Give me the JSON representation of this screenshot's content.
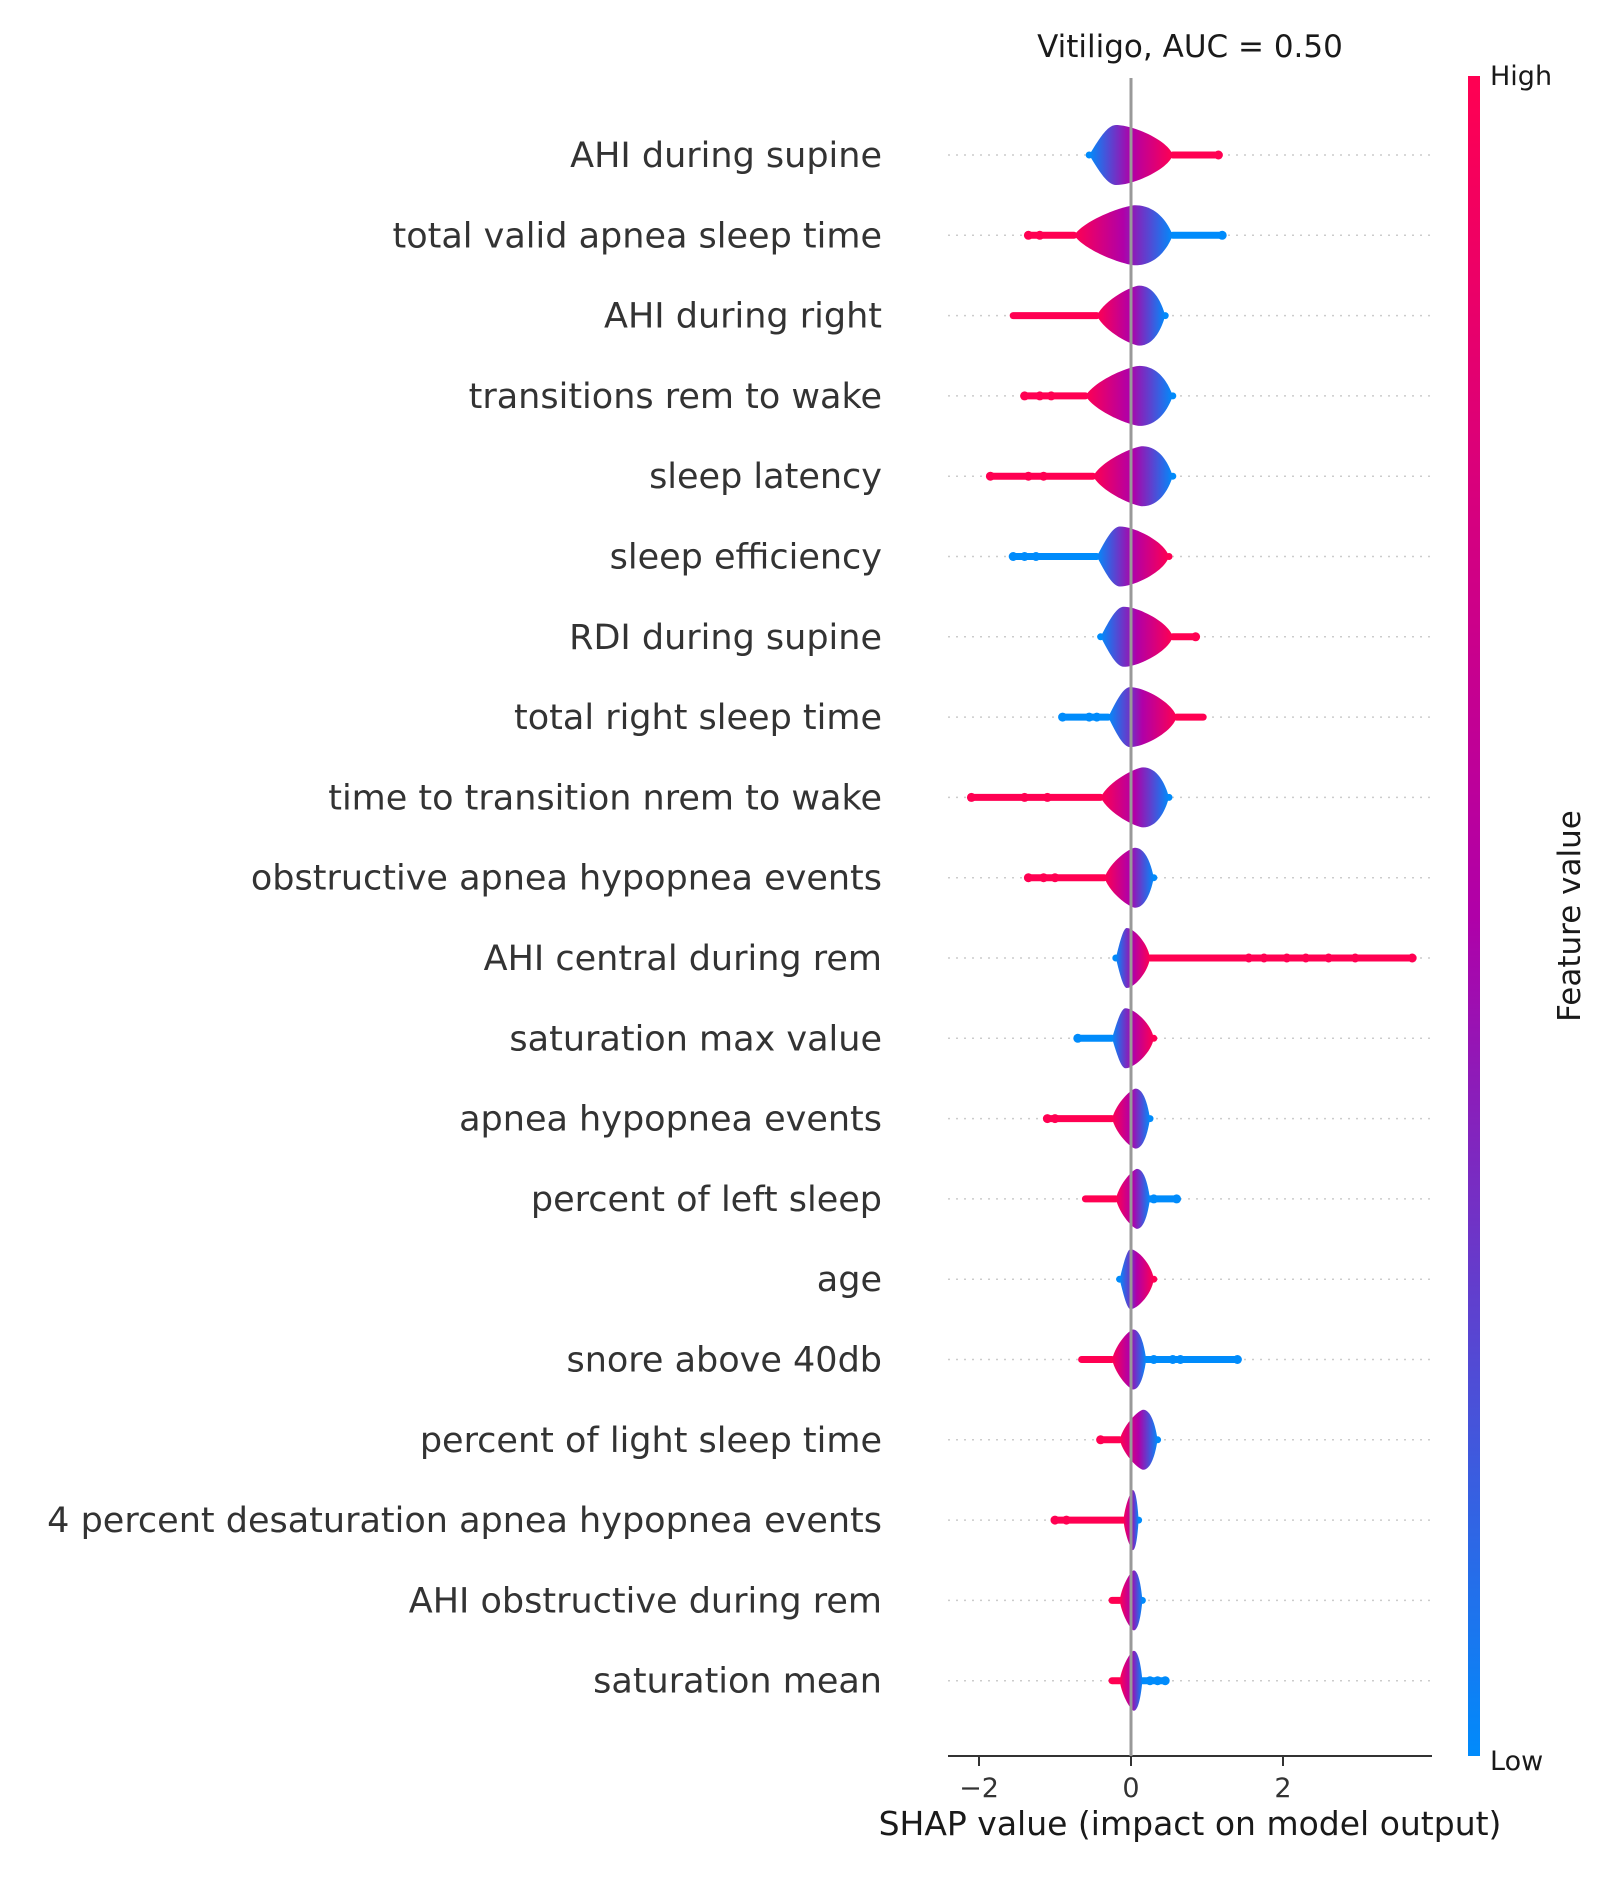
{
  "chart_data": {
    "type": "violin",
    "title": "Vitiligo, AUC =  0.50",
    "xlabel": "SHAP value (impact on model output)",
    "xlim": [
      -2.4,
      3.95
    ],
    "xticks": [
      -2,
      0,
      2
    ],
    "xtick_labels": [
      "−2",
      "0",
      "2"
    ],
    "zero_line": 0,
    "colorbar": {
      "title": "Feature value",
      "high_label": "High",
      "low_label": "Low",
      "high_color": "#ff0052",
      "mid_color": "#b000a8",
      "low_color": "#008bfb"
    },
    "features": [
      {
        "name": "AHI during supine",
        "core": [
          -0.55,
          0.55
        ],
        "min": -0.55,
        "max": 1.15,
        "high_side": "right",
        "outliers": [
          1.15
        ]
      },
      {
        "name": "total valid apnea sleep time",
        "core": [
          -0.75,
          0.55
        ],
        "min": -1.35,
        "max": 1.2,
        "high_side": "left",
        "outliers": [
          -1.35,
          -1.2,
          1.2
        ]
      },
      {
        "name": "AHI during right",
        "core": [
          -0.45,
          0.45
        ],
        "min": -1.55,
        "max": 0.45,
        "high_side": "left",
        "outliers": []
      },
      {
        "name": "transitions rem to wake",
        "core": [
          -0.6,
          0.55
        ],
        "min": -1.4,
        "max": 0.55,
        "high_side": "left",
        "outliers": [
          -1.4,
          -1.2,
          -1.05
        ]
      },
      {
        "name": "sleep latency",
        "core": [
          -0.5,
          0.55
        ],
        "min": -1.85,
        "max": 0.55,
        "high_side": "left",
        "outliers": [
          -1.85,
          -1.35,
          -1.15
        ]
      },
      {
        "name": "sleep efficiency",
        "core": [
          -0.45,
          0.5
        ],
        "min": -1.55,
        "max": 0.5,
        "high_side": "right",
        "outliers": [
          -1.55,
          -1.4,
          -1.25
        ]
      },
      {
        "name": "RDI during supine",
        "core": [
          -0.4,
          0.55
        ],
        "min": -0.4,
        "max": 0.85,
        "high_side": "right",
        "outliers": [
          0.85
        ]
      },
      {
        "name": "total right sleep time",
        "core": [
          -0.3,
          0.6
        ],
        "min": -0.9,
        "max": 0.95,
        "high_side": "right",
        "outliers": [
          -0.9,
          -0.55,
          -0.45
        ]
      },
      {
        "name": "time to transition nrem to wake",
        "core": [
          -0.4,
          0.5
        ],
        "min": -2.1,
        "max": 0.5,
        "high_side": "left",
        "outliers": [
          -2.1,
          -1.4,
          -1.1
        ]
      },
      {
        "name": "obstructive apnea hypopnea events",
        "core": [
          -0.35,
          0.3
        ],
        "min": -1.35,
        "max": 0.3,
        "high_side": "left",
        "outliers": [
          -1.35,
          -1.15,
          -1.0
        ]
      },
      {
        "name": "AHI central during rem",
        "core": [
          -0.2,
          0.25
        ],
        "min": -0.2,
        "max": 3.7,
        "high_side": "right",
        "outliers": [
          1.55,
          1.75,
          2.05,
          2.3,
          2.6,
          2.95,
          3.7
        ]
      },
      {
        "name": "saturation max value",
        "core": [
          -0.25,
          0.3
        ],
        "min": -0.7,
        "max": 0.3,
        "high_side": "right",
        "outliers": [
          -0.7
        ]
      },
      {
        "name": "apnea hypopnea events",
        "core": [
          -0.25,
          0.25
        ],
        "min": -1.1,
        "max": 0.25,
        "high_side": "left",
        "outliers": [
          -1.1,
          -1.0
        ]
      },
      {
        "name": "percent of left sleep",
        "core": [
          -0.2,
          0.25
        ],
        "min": -0.6,
        "max": 0.6,
        "high_side": "left",
        "outliers": [
          0.3,
          0.6
        ]
      },
      {
        "name": "age",
        "core": [
          -0.15,
          0.3
        ],
        "min": -0.15,
        "max": 0.3,
        "high_side": "right",
        "outliers": []
      },
      {
        "name": "snore above 40db",
        "core": [
          -0.25,
          0.2
        ],
        "min": -0.65,
        "max": 1.4,
        "high_side": "left",
        "outliers": [
          0.3,
          0.55,
          0.65,
          1.4
        ]
      },
      {
        "name": "percent of light sleep time",
        "core": [
          -0.15,
          0.35
        ],
        "min": -0.4,
        "max": 0.35,
        "high_side": "left",
        "outliers": [
          -0.4
        ]
      },
      {
        "name": "4 percent desaturation apnea hypopnea events",
        "core": [
          -0.1,
          0.1
        ],
        "min": -1.0,
        "max": 0.1,
        "high_side": "left",
        "outliers": [
          -1.0,
          -0.85
        ]
      },
      {
        "name": "AHI obstructive during rem",
        "core": [
          -0.15,
          0.15
        ],
        "min": -0.25,
        "max": 0.15,
        "high_side": "left",
        "outliers": []
      },
      {
        "name": "saturation mean",
        "core": [
          -0.15,
          0.15
        ],
        "min": -0.25,
        "max": 0.45,
        "high_side": "left",
        "outliers": [
          0.25,
          0.35,
          0.45
        ]
      }
    ]
  }
}
